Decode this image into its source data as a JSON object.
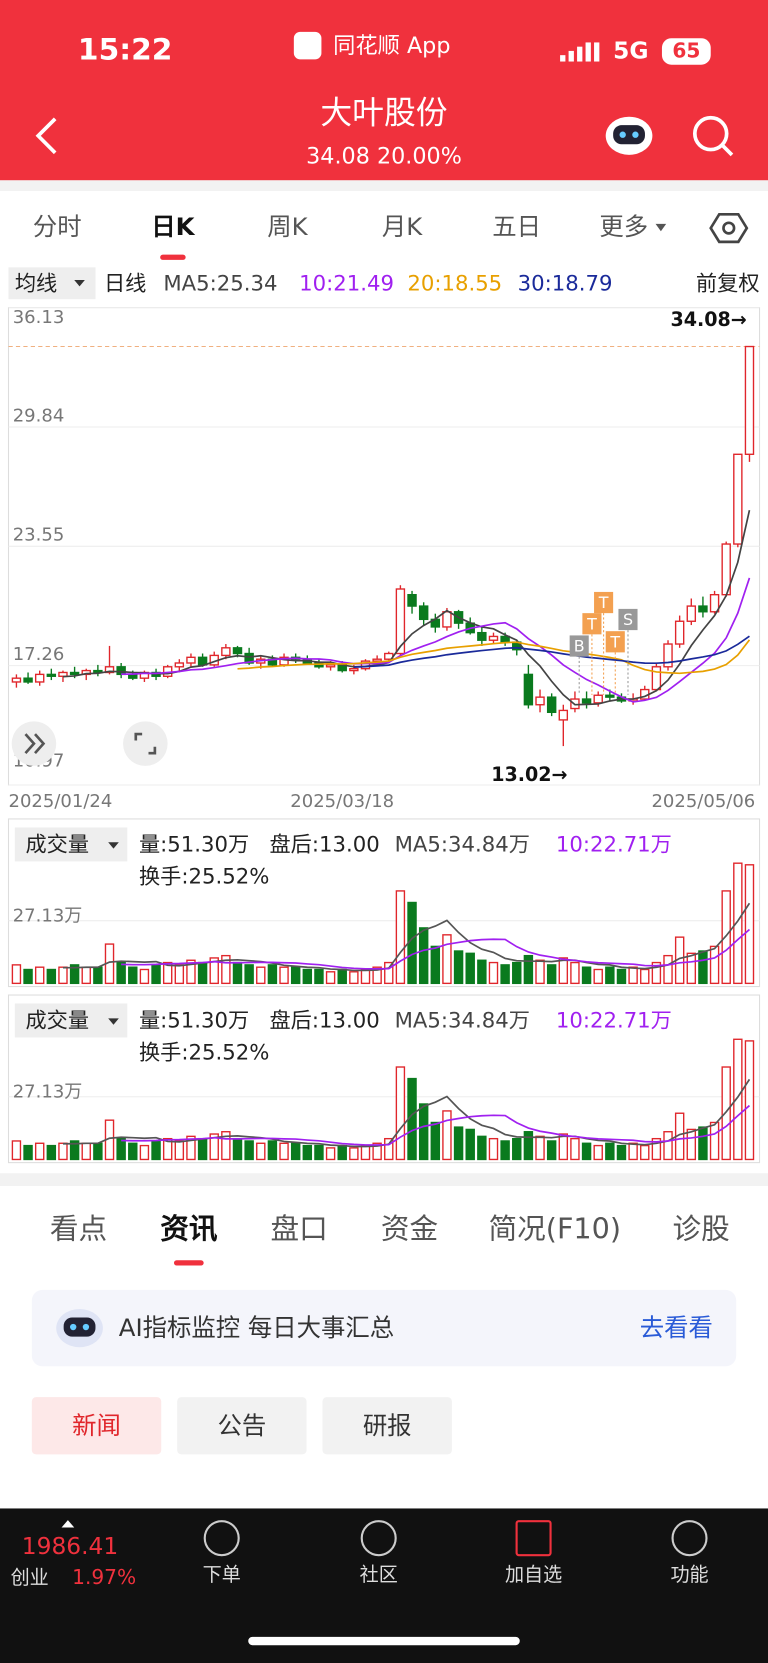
{
  "status": {
    "time": "15:22",
    "app": "同花顺 App",
    "network": "5G",
    "battery": "65"
  },
  "header": {
    "title": "大叶股份",
    "quote": "34.08 20.00%"
  },
  "period_tabs": [
    "分时",
    "日K",
    "周K",
    "月K",
    "五日",
    "更多"
  ],
  "active_period": 1,
  "indicator": {
    "selector": "均线",
    "period": "日线",
    "ma": [
      {
        "label": "MA5:25.34",
        "color": "#444444"
      },
      {
        "label": "10:21.49",
        "color": "#a020f0"
      },
      {
        "label": "20:18.55",
        "color": "#e8a000"
      },
      {
        "label": "30:18.79",
        "color": "#1a2a9a"
      }
    ],
    "adjust": "前复权"
  },
  "chart_data": {
    "type": "candlestick",
    "ylim": [
      10.97,
      36.13
    ],
    "yticks": [
      10.97,
      17.26,
      23.55,
      29.84,
      36.13
    ],
    "categories": [
      "2025/01/24",
      null,
      null,
      null,
      null,
      null,
      null,
      null,
      null,
      null,
      null,
      null,
      null,
      null,
      null,
      null,
      null,
      null,
      null,
      null,
      null,
      null,
      null,
      null,
      null,
      null,
      null,
      null,
      "2025/03/18",
      null,
      null,
      null,
      null,
      null,
      null,
      null,
      null,
      null,
      null,
      null,
      null,
      null,
      null,
      null,
      null,
      null,
      null,
      null,
      null,
      null,
      null,
      null,
      null,
      null,
      null,
      null,
      null,
      null,
      null,
      null,
      null,
      null,
      null,
      "2025/05/06"
    ],
    "candles": [
      [
        16.4,
        16.8,
        16.1,
        16.6
      ],
      [
        16.6,
        16.9,
        16.3,
        16.4
      ],
      [
        16.4,
        17.0,
        16.2,
        16.8
      ],
      [
        16.8,
        17.1,
        16.5,
        16.7
      ],
      [
        16.7,
        17.0,
        16.4,
        16.9
      ],
      [
        16.9,
        17.2,
        16.6,
        16.8
      ],
      [
        16.8,
        17.1,
        16.5,
        17.0
      ],
      [
        17.0,
        17.3,
        16.7,
        16.9
      ],
      [
        16.9,
        18.3,
        16.8,
        17.2
      ],
      [
        17.2,
        17.4,
        16.6,
        16.8
      ],
      [
        16.8,
        17.0,
        16.5,
        16.6
      ],
      [
        16.6,
        17.0,
        16.4,
        16.9
      ],
      [
        16.9,
        17.1,
        16.5,
        16.7
      ],
      [
        16.7,
        17.3,
        16.6,
        17.2
      ],
      [
        17.2,
        17.6,
        17.0,
        17.4
      ],
      [
        17.4,
        17.9,
        17.2,
        17.7
      ],
      [
        17.7,
        17.9,
        17.2,
        17.3
      ],
      [
        17.3,
        18.0,
        17.2,
        17.8
      ],
      [
        17.8,
        18.4,
        17.6,
        18.2
      ],
      [
        18.2,
        18.3,
        17.7,
        17.9
      ],
      [
        17.9,
        18.2,
        17.3,
        17.4
      ],
      [
        17.4,
        17.8,
        17.1,
        17.6
      ],
      [
        17.6,
        17.8,
        17.2,
        17.3
      ],
      [
        17.3,
        17.9,
        17.2,
        17.7
      ],
      [
        17.7,
        17.9,
        17.4,
        17.6
      ],
      [
        17.6,
        17.8,
        17.3,
        17.4
      ],
      [
        17.4,
        17.6,
        17.1,
        17.2
      ],
      [
        17.2,
        17.5,
        17.0,
        17.3
      ],
      [
        17.3,
        17.5,
        16.9,
        17.0
      ],
      [
        17.0,
        17.3,
        16.8,
        17.1
      ],
      [
        17.1,
        17.6,
        17.0,
        17.5
      ],
      [
        17.5,
        17.8,
        17.3,
        17.6
      ],
      [
        17.6,
        18.0,
        17.4,
        17.9
      ],
      [
        17.9,
        21.5,
        17.8,
        21.3
      ],
      [
        21.0,
        21.2,
        20.0,
        20.4
      ],
      [
        20.4,
        20.6,
        19.4,
        19.7
      ],
      [
        19.7,
        20.0,
        19.0,
        19.3
      ],
      [
        19.3,
        20.3,
        19.1,
        20.1
      ],
      [
        20.1,
        20.2,
        19.2,
        19.5
      ],
      [
        19.5,
        19.8,
        18.9,
        19.0
      ],
      [
        19.0,
        19.3,
        18.3,
        18.6
      ],
      [
        18.6,
        19.0,
        18.4,
        18.8
      ],
      [
        18.8,
        19.0,
        18.3,
        18.5
      ],
      [
        18.5,
        18.6,
        17.8,
        18.1
      ],
      [
        16.8,
        17.3,
        15.0,
        15.2
      ],
      [
        15.2,
        16.0,
        14.8,
        15.6
      ],
      [
        15.6,
        15.8,
        14.6,
        14.8
      ],
      [
        14.4,
        15.2,
        13.02,
        14.9
      ],
      [
        15.0,
        15.9,
        14.8,
        15.5
      ],
      [
        15.5,
        15.9,
        15.0,
        15.3
      ],
      [
        15.3,
        15.9,
        15.1,
        15.7
      ],
      [
        15.7,
        16.0,
        15.4,
        15.6
      ],
      [
        15.6,
        15.8,
        15.3,
        15.4
      ],
      [
        15.4,
        15.8,
        15.2,
        15.5
      ],
      [
        15.5,
        16.2,
        15.4,
        16.0
      ],
      [
        16.0,
        17.4,
        15.9,
        17.2
      ],
      [
        17.2,
        18.6,
        17.0,
        18.4
      ],
      [
        18.4,
        19.9,
        18.2,
        19.6
      ],
      [
        19.6,
        20.8,
        19.4,
        20.4
      ],
      [
        20.4,
        20.9,
        19.8,
        20.1
      ],
      [
        20.1,
        21.2,
        20.0,
        21.0
      ],
      [
        21.0,
        23.8,
        20.9,
        23.67
      ],
      [
        23.67,
        28.4,
        23.5,
        28.4
      ],
      [
        28.4,
        34.08,
        28.0,
        34.08
      ]
    ],
    "up_color": "#e0262b",
    "down_color": "#0a7a1e",
    "ma_periods": [
      5,
      10,
      20,
      30
    ],
    "max_label": "34.08→",
    "min_label": "13.02→",
    "trade_marks": [
      "B",
      "T",
      "T",
      "T",
      "S"
    ]
  },
  "volume": {
    "type": "bar",
    "title": "成交量",
    "amount": "量:51.30万",
    "after_hours": "盘后:13.00",
    "ma5": "MA5:34.84万",
    "ma10": "10:22.71万",
    "turnover": "换手:25.52%",
    "ylim": [
      0,
      56
    ],
    "yticks": [
      {
        "value": 27.13,
        "label": "27.13万"
      }
    ],
    "ma_periods": [
      5,
      10
    ],
    "ma_colors": [
      "#555555",
      "#a020f0"
    ],
    "values": [
      8,
      6,
      7,
      6,
      7,
      8,
      7,
      7,
      17,
      9,
      7,
      6,
      8,
      9,
      8,
      10,
      9,
      11,
      12,
      9,
      8,
      7,
      8,
      7,
      7,
      6,
      6,
      5,
      6,
      5,
      6,
      7,
      9,
      40,
      35,
      24,
      16,
      21,
      14,
      13,
      10,
      9,
      8,
      9,
      12,
      10,
      8,
      11,
      9,
      7,
      6,
      7,
      6,
      7,
      6,
      9,
      12,
      20,
      13,
      14,
      16,
      40,
      52,
      51.3
    ]
  },
  "info_tabs": [
    "看点",
    "资讯",
    "盘口",
    "资金",
    "简况(F10)",
    "诊股"
  ],
  "active_info": 1,
  "ai_banner": {
    "text": "AI指标监控 每日大事汇总",
    "action": "去看看"
  },
  "news_buttons": [
    "新闻",
    "公告",
    "研报"
  ],
  "bottom_nav": {
    "index_value": "1986.41",
    "index_name": "创业",
    "index_change": "1.97%",
    "items": [
      "下单",
      "社区",
      "加自选",
      "功能"
    ]
  }
}
